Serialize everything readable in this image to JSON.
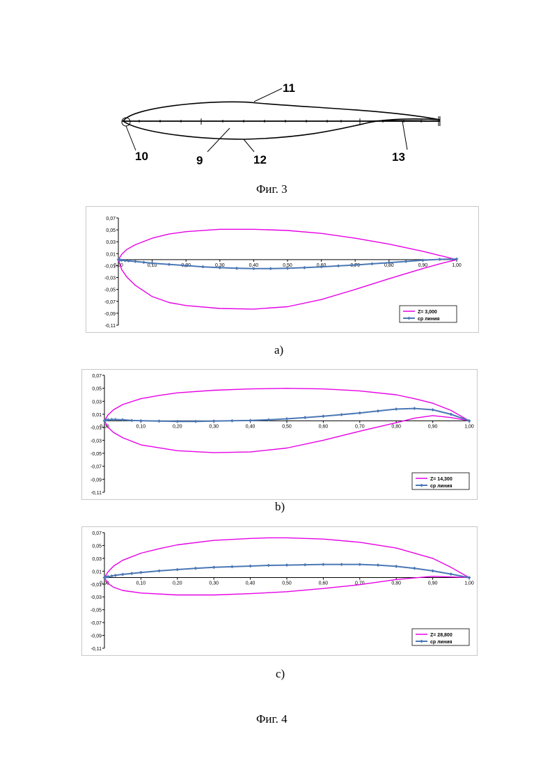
{
  "figure3": {
    "caption": "Фиг. 3",
    "callouts": [
      "11",
      "10",
      "9",
      "12",
      "13"
    ]
  },
  "figure4": {
    "caption": "Фиг. 4"
  },
  "colors": {
    "profile": "#e600e6",
    "midline": "#4a77b4",
    "axis": "#000000"
  },
  "chart_data": [
    {
      "type": "line",
      "panel_label": "a)",
      "xlim": [
        0,
        1
      ],
      "ylim": [
        -0.11,
        0.07
      ],
      "y_ticks": [
        "0,07",
        "0,05",
        "0,03",
        "0,01",
        "-0,01",
        "-0,03",
        "-0,05",
        "-0,07",
        "-0,09",
        "-0,11"
      ],
      "x_ticks": [
        "0,00",
        "0,10",
        "0,20",
        "0,30",
        "0,40",
        "0,50",
        "0,60",
        "0,70",
        "0,80",
        "0,90",
        "1,00"
      ],
      "grid": false,
      "legend_position": "bottom-right",
      "series": [
        {
          "name": "Z= 3,000",
          "marker": false,
          "x": [
            1.0,
            0.95,
            0.9,
            0.8,
            0.7,
            0.6,
            0.5,
            0.4,
            0.3,
            0.2,
            0.15,
            0.1,
            0.05,
            0.025,
            0.01,
            0.0,
            0.01,
            0.025,
            0.05,
            0.1,
            0.15,
            0.2,
            0.3,
            0.4,
            0.5,
            0.6,
            0.7,
            0.8,
            0.9,
            0.95,
            1.0
          ],
          "y": [
            0.0,
            0.007,
            0.014,
            0.026,
            0.036,
            0.044,
            0.049,
            0.051,
            0.051,
            0.047,
            0.043,
            0.036,
            0.025,
            0.017,
            0.009,
            0.0,
            -0.017,
            -0.029,
            -0.043,
            -0.062,
            -0.072,
            -0.077,
            -0.082,
            -0.083,
            -0.079,
            -0.067,
            -0.05,
            -0.032,
            -0.015,
            -0.007,
            0.0
          ]
        },
        {
          "name": "ср линия",
          "marker": true,
          "x": [
            0.0,
            0.005,
            0.01,
            0.02,
            0.03,
            0.05,
            0.075,
            0.1,
            0.15,
            0.2,
            0.25,
            0.3,
            0.35,
            0.4,
            0.45,
            0.5,
            0.55,
            0.6,
            0.65,
            0.7,
            0.75,
            0.8,
            0.85,
            0.9,
            0.95,
            1.0
          ],
          "y": [
            0.0,
            -0.0005,
            -0.001,
            -0.0015,
            -0.002,
            -0.003,
            -0.0045,
            -0.006,
            -0.008,
            -0.01,
            -0.012,
            -0.0135,
            -0.0145,
            -0.015,
            -0.015,
            -0.0145,
            -0.0135,
            -0.012,
            -0.0105,
            -0.009,
            -0.007,
            -0.005,
            -0.003,
            -0.001,
            0.0005,
            0.001
          ]
        }
      ]
    },
    {
      "type": "line",
      "panel_label": "b)",
      "xlim": [
        0,
        1
      ],
      "ylim": [
        -0.11,
        0.07
      ],
      "y_ticks": [
        "0,07",
        "0,05",
        "0,03",
        "0,01",
        "-0,01",
        "-0,03",
        "-0,05",
        "-0,07",
        "-0,09",
        "-0,11"
      ],
      "x_ticks": [
        "0,00",
        "0,10",
        "0,20",
        "0,30",
        "0,40",
        "0,50",
        "0,60",
        "0,70",
        "0,80",
        "0,90",
        "1,00"
      ],
      "grid": false,
      "legend_position": "bottom-right",
      "series": [
        {
          "name": "Z= 14,300",
          "marker": false,
          "x": [
            1.0,
            0.95,
            0.9,
            0.85,
            0.8,
            0.7,
            0.6,
            0.5,
            0.4,
            0.3,
            0.2,
            0.15,
            0.1,
            0.05,
            0.025,
            0.01,
            0.0,
            0.01,
            0.025,
            0.05,
            0.1,
            0.2,
            0.3,
            0.4,
            0.5,
            0.6,
            0.7,
            0.8,
            0.85,
            0.9,
            0.95,
            1.0
          ],
          "y": [
            0.0,
            0.016,
            0.027,
            0.034,
            0.04,
            0.046,
            0.049,
            0.05,
            0.049,
            0.047,
            0.043,
            0.039,
            0.034,
            0.025,
            0.017,
            0.009,
            0.0,
            -0.01,
            -0.018,
            -0.026,
            -0.037,
            -0.046,
            -0.049,
            -0.048,
            -0.042,
            -0.03,
            -0.016,
            -0.003,
            0.004,
            0.008,
            0.005,
            0.0
          ]
        },
        {
          "name": "ср линия",
          "marker": true,
          "x": [
            0.0,
            0.005,
            0.01,
            0.02,
            0.03,
            0.05,
            0.075,
            0.1,
            0.15,
            0.2,
            0.25,
            0.3,
            0.35,
            0.4,
            0.45,
            0.5,
            0.55,
            0.6,
            0.65,
            0.7,
            0.75,
            0.8,
            0.85,
            0.9,
            0.95,
            1.0
          ],
          "y": [
            0.0,
            0.001,
            0.0015,
            0.002,
            0.002,
            0.0015,
            0.0005,
            0.0,
            -0.0005,
            -0.001,
            -0.001,
            -0.0005,
            0.0,
            0.0005,
            0.0015,
            0.003,
            0.005,
            0.007,
            0.0095,
            0.012,
            0.015,
            0.018,
            0.019,
            0.017,
            0.01,
            0.0
          ]
        }
      ]
    },
    {
      "type": "line",
      "panel_label": "c)",
      "xlim": [
        0,
        1
      ],
      "ylim": [
        -0.11,
        0.07
      ],
      "y_ticks": [
        "0,07",
        "0,05",
        "0,03",
        "0,01",
        "-0,01",
        "-0,03",
        "-0,05",
        "-0,07",
        "-0,09",
        "-0,11"
      ],
      "x_ticks": [
        "0,00",
        "0,10",
        "0,20",
        "0,30",
        "0,40",
        "0,50",
        "0,60",
        "0,70",
        "0,80",
        "0,90",
        "1,00"
      ],
      "grid": false,
      "legend_position": "bottom-right",
      "series": [
        {
          "name": "Z= 28,800",
          "marker": false,
          "x": [
            1.0,
            0.95,
            0.9,
            0.8,
            0.7,
            0.6,
            0.5,
            0.45,
            0.4,
            0.3,
            0.2,
            0.15,
            0.1,
            0.05,
            0.025,
            0.01,
            0.0,
            0.01,
            0.025,
            0.05,
            0.1,
            0.2,
            0.3,
            0.4,
            0.5,
            0.6,
            0.7,
            0.8,
            0.9,
            0.95,
            1.0
          ],
          "y": [
            0.0,
            0.016,
            0.03,
            0.046,
            0.055,
            0.06,
            0.062,
            0.062,
            0.061,
            0.058,
            0.051,
            0.045,
            0.038,
            0.027,
            0.018,
            0.009,
            0.0,
            -0.009,
            -0.015,
            -0.02,
            -0.024,
            -0.027,
            -0.027,
            -0.025,
            -0.022,
            -0.017,
            -0.011,
            -0.003,
            0.002,
            0.001,
            0.0
          ]
        },
        {
          "name": "ср линия",
          "marker": true,
          "x": [
            0.0,
            0.005,
            0.01,
            0.02,
            0.03,
            0.05,
            0.075,
            0.1,
            0.15,
            0.2,
            0.25,
            0.3,
            0.35,
            0.4,
            0.45,
            0.5,
            0.55,
            0.6,
            0.65,
            0.7,
            0.75,
            0.8,
            0.85,
            0.9,
            0.95,
            1.0
          ],
          "y": [
            0.0,
            0.001,
            0.0015,
            0.0025,
            0.0035,
            0.005,
            0.0065,
            0.008,
            0.0105,
            0.0125,
            0.0145,
            0.016,
            0.017,
            0.018,
            0.019,
            0.0195,
            0.02,
            0.0205,
            0.0205,
            0.0205,
            0.0195,
            0.0175,
            0.0145,
            0.0105,
            0.0055,
            0.0
          ]
        }
      ]
    }
  ]
}
